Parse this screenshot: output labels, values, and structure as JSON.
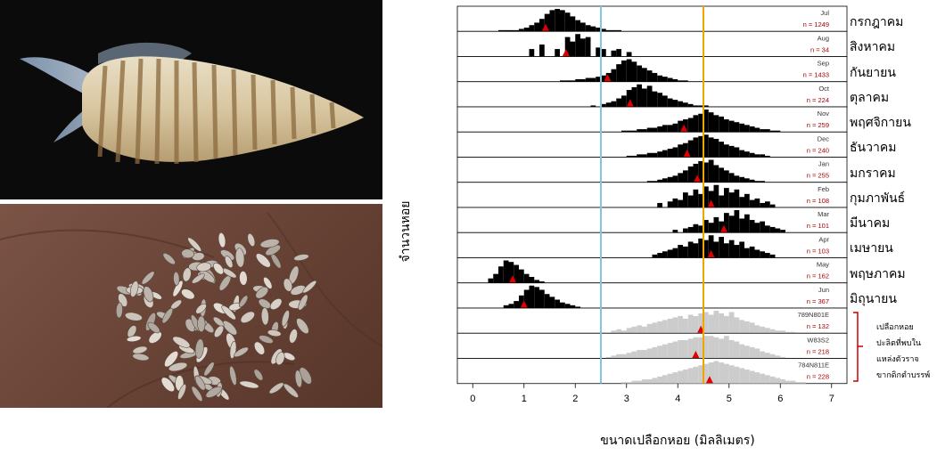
{
  "figure": {
    "ylabel": "จำนวนหอย",
    "xlabel": "ขนาดเปลือกหอย (มิลลิเมตร)",
    "site_note_lines": [
      "เปลือกหอย",
      "ปะลิตที่พบใน",
      "แหล่งตัวราจ",
      "ขากดิกตำบรรพ์"
    ],
    "photos": [
      {
        "name": "live-snail-photo",
        "subject": "sea snail"
      },
      {
        "name": "shells-in-hand-photo",
        "subject": "shells in hand"
      }
    ]
  },
  "chart_data": {
    "type": "histogram-ridgeline",
    "xlim": [
      -0.3,
      7.3
    ],
    "x_ticks": [
      0,
      1,
      2,
      3,
      4,
      5,
      6,
      7
    ],
    "bin_width": 0.1,
    "reference_lines": [
      {
        "x": 2.5,
        "color": "#7fc8e0"
      },
      {
        "x": 4.5,
        "color": "#f0a500"
      }
    ],
    "colors": {
      "modern": "#000000",
      "archaeological": "#cccccc",
      "mean_marker": "#e00000",
      "n_label": "#aa0000"
    },
    "panels": [
      {
        "tag": "Jul",
        "n": "n = 1249",
        "thai": "กรกฎาคม",
        "group": "modern",
        "mean": 1.42,
        "x_start": 0.5,
        "counts": [
          1,
          1,
          1,
          1,
          2,
          3,
          5,
          7,
          10,
          14,
          17,
          18,
          17,
          15,
          12,
          9,
          7,
          5,
          4,
          3,
          2,
          1,
          1,
          1
        ]
      },
      {
        "tag": "Aug",
        "n": "n = 34",
        "thai": "สิงหาคม",
        "group": "modern",
        "mean": 1.82,
        "x_start": 1.1,
        "counts": [
          5,
          0,
          8,
          0,
          0,
          5,
          0,
          13,
          10,
          15,
          12,
          13,
          0,
          6,
          5,
          0,
          4,
          5,
          0,
          3
        ]
      },
      {
        "tag": "Sep",
        "n": "n = 1433",
        "thai": "กันยายน",
        "group": "modern",
        "mean": 2.63,
        "x_start": 1.7,
        "counts": [
          1,
          1,
          1,
          2,
          2,
          3,
          3,
          4,
          5,
          7,
          10,
          14,
          17,
          18,
          16,
          13,
          11,
          9,
          7,
          5,
          4,
          3,
          2,
          1,
          1
        ]
      },
      {
        "tag": "Oct",
        "n": "n = 224",
        "thai": "ตุลาคม",
        "group": "modern",
        "mean": 3.07,
        "x_start": 2.3,
        "counts": [
          1,
          0,
          2,
          3,
          4,
          6,
          8,
          12,
          14,
          16,
          13,
          15,
          11,
          10,
          8,
          6,
          5,
          4,
          3,
          2,
          1,
          1,
          1
        ]
      },
      {
        "tag": "Nov",
        "n": "n = 259",
        "thai": "พฤศจิกายน",
        "group": "modern",
        "mean": 4.12,
        "x_start": 2.9,
        "counts": [
          1,
          1,
          1,
          2,
          2,
          3,
          3,
          4,
          5,
          5,
          6,
          8,
          9,
          10,
          12,
          13,
          16,
          14,
          12,
          11,
          9,
          8,
          7,
          6,
          5,
          4,
          3,
          2,
          2,
          1,
          1
        ]
      },
      {
        "tag": "Dec",
        "n": "n = 240",
        "thai": "ธันวาคม",
        "group": "modern",
        "mean": 4.18,
        "x_start": 3.0,
        "counts": [
          1,
          1,
          2,
          2,
          3,
          3,
          4,
          5,
          6,
          7,
          9,
          10,
          12,
          14,
          15,
          16,
          14,
          13,
          11,
          9,
          8,
          7,
          5,
          4,
          3,
          2,
          2,
          1
        ]
      },
      {
        "tag": "Jan",
        "n": "n = 255",
        "thai": "มกราคม",
        "group": "modern",
        "mean": 4.38,
        "x_start": 3.4,
        "counts": [
          1,
          1,
          2,
          3,
          4,
          5,
          7,
          9,
          12,
          14,
          16,
          15,
          17,
          13,
          11,
          9,
          7,
          5,
          4,
          3,
          2,
          1,
          1
        ]
      },
      {
        "tag": "Feb",
        "n": "n = 108",
        "thai": "กุมภาพันธ์",
        "group": "modern",
        "mean": 4.65,
        "x_start": 3.6,
        "counts": [
          3,
          0,
          4,
          6,
          5,
          10,
          8,
          12,
          9,
          14,
          11,
          15,
          8,
          13,
          10,
          12,
          7,
          9,
          5,
          6,
          3,
          4,
          2
        ]
      },
      {
        "tag": "Mar",
        "n": "n = 101",
        "thai": "มีนาคม",
        "group": "modern",
        "mean": 4.9,
        "x_start": 3.9,
        "counts": [
          2,
          0,
          3,
          4,
          6,
          5,
          9,
          7,
          11,
          8,
          14,
          12,
          16,
          10,
          13,
          9,
          7,
          8,
          5,
          4,
          3,
          2
        ]
      },
      {
        "tag": "Apr",
        "n": "n = 103",
        "thai": "เมษายน",
        "group": "modern",
        "mean": 4.65,
        "x_start": 3.5,
        "counts": [
          2,
          3,
          4,
          5,
          6,
          8,
          7,
          10,
          9,
          12,
          11,
          14,
          10,
          13,
          9,
          11,
          8,
          10,
          6,
          7,
          5,
          4,
          3,
          2
        ]
      },
      {
        "tag": "May",
        "n": "n = 162",
        "thai": "พฤษภาคม",
        "group": "modern",
        "mean": 0.78,
        "x_start": 0.3,
        "counts": [
          3,
          6,
          11,
          15,
          14,
          12,
          9,
          6,
          4,
          2,
          1
        ]
      },
      {
        "tag": "Jun",
        "n": "n = 367",
        "thai": "มิถุนายน",
        "group": "modern",
        "mean": 1.0,
        "x_start": 0.6,
        "counts": [
          2,
          3,
          5,
          9,
          13,
          16,
          15,
          13,
          10,
          8,
          6,
          4,
          3,
          2,
          1
        ]
      },
      {
        "tag": "789N801E",
        "n": "n = 132",
        "thai": "",
        "group": "archaeological",
        "mean": 4.45,
        "x_start": 2.7,
        "counts": [
          2,
          3,
          2,
          4,
          5,
          6,
          5,
          7,
          8,
          9,
          10,
          11,
          12,
          13,
          11,
          14,
          13,
          15,
          16,
          14,
          17,
          15,
          13,
          16,
          12,
          10,
          9,
          8,
          6,
          5,
          4,
          3,
          2,
          2,
          1,
          1
        ]
      },
      {
        "tag": "W83S2",
        "n": "n = 218",
        "thai": "",
        "group": "archaeological",
        "mean": 4.35,
        "x_start": 2.6,
        "counts": [
          1,
          2,
          3,
          3,
          4,
          5,
          6,
          6,
          7,
          8,
          9,
          10,
          11,
          12,
          13,
          13,
          14,
          15,
          15,
          16,
          16,
          15,
          14,
          16,
          13,
          12,
          10,
          9,
          8,
          7,
          5,
          4,
          3,
          2,
          1
        ]
      },
      {
        "tag": "784N811E",
        "n": "n = 228",
        "thai": "",
        "group": "archaeological",
        "mean": 4.62,
        "x_start": 2.9,
        "counts": [
          1,
          1,
          2,
          2,
          3,
          3,
          4,
          5,
          6,
          7,
          8,
          9,
          10,
          11,
          12,
          13,
          14,
          15,
          16,
          15,
          14,
          13,
          12,
          11,
          10,
          9,
          8,
          7,
          6,
          5,
          4,
          3,
          2,
          2,
          1,
          1
        ]
      }
    ]
  }
}
